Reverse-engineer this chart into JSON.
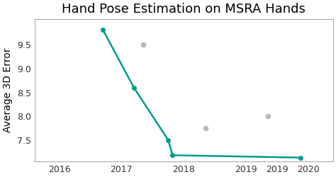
{
  "title": "Hand Pose Estimation on MSRA Hands",
  "ylabel": "Average 3D Error",
  "line_x": [
    2016.7,
    2017.2,
    2017.75,
    2017.82,
    2019.88
  ],
  "line_y": [
    9.82,
    8.6,
    7.5,
    7.18,
    7.13
  ],
  "line_color": "#009B8D",
  "line_marker": "o",
  "line_markersize": 4,
  "line_linewidth": 1.8,
  "scatter_x": [
    2017.35,
    2018.35,
    2019.35
  ],
  "scatter_y": [
    9.5,
    7.75,
    8.0
  ],
  "scatter_color": "#b8b8b8",
  "scatter_size": 20,
  "xlim": [
    2015.6,
    2020.4
  ],
  "ylim": [
    7.05,
    10.05
  ],
  "xtick_positions": [
    2016,
    2017,
    2018,
    2019,
    2019.5,
    2020
  ],
  "xtick_labels": [
    "2016",
    "2017",
    "2018",
    "2019",
    "2019",
    "2020"
  ],
  "ytick_positions": [
    7.5,
    8.0,
    8.5,
    9.0,
    9.5
  ],
  "ytick_labels": [
    "7.5",
    "8.0",
    "8.5",
    "9.0",
    "9.5"
  ],
  "background_color": "#ffffff",
  "plot_bg_color": "#ffffff",
  "title_fontsize": 13,
  "ylabel_fontsize": 10,
  "tick_fontsize": 9,
  "figwidth": 4.74,
  "figheight": 2.5,
  "dpi": 100
}
